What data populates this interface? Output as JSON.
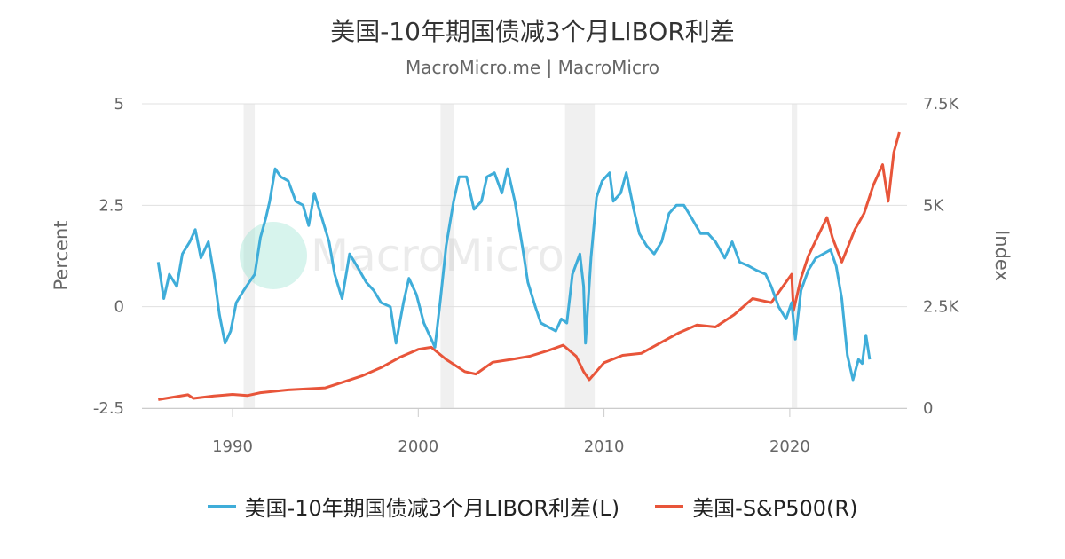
{
  "title": "美国-10年期国债减3个月LIBOR利差",
  "subtitle": "MacroMicro.me | MacroMicro",
  "watermark": "MacroMicro",
  "chart_data": {
    "type": "line",
    "title": "美国-10年期国债减3个月LIBOR利差",
    "xlim": [
      1986,
      2026
    ],
    "x_ticks": [
      "1990",
      "2000",
      "2010",
      "2020"
    ],
    "y_left": {
      "label": "Percent",
      "lim": [
        -2.5,
        5
      ],
      "ticks": [
        "-2.5",
        "0",
        "2.5",
        "5"
      ]
    },
    "y_right": {
      "label": "Index",
      "lim": [
        0,
        7500
      ],
      "ticks": [
        "0",
        "2.5K",
        "5K",
        "7.5K"
      ]
    },
    "grid": true,
    "legend_position": "bottom",
    "recessions": [
      [
        1990.6,
        1991.2
      ],
      [
        2001.2,
        2001.9
      ],
      [
        2007.9,
        2009.5
      ],
      [
        2020.1,
        2020.4
      ]
    ],
    "series": [
      {
        "name": "美国-10年期国债减3个月LIBOR利差(L)",
        "axis": "left",
        "color": "#3fadd9",
        "x": [
          1986.0,
          1986.3,
          1986.6,
          1987.0,
          1987.3,
          1987.7,
          1988.0,
          1988.3,
          1988.7,
          1989.0,
          1989.3,
          1989.6,
          1989.9,
          1990.2,
          1990.6,
          1990.9,
          1991.2,
          1991.5,
          1991.8,
          1992.0,
          1992.3,
          1992.6,
          1993.0,
          1993.4,
          1993.8,
          1994.1,
          1994.4,
          1994.8,
          1995.2,
          1995.5,
          1995.9,
          1996.3,
          1996.7,
          1997.2,
          1997.6,
          1998.0,
          1998.5,
          1998.8,
          1999.2,
          1999.5,
          1999.9,
          2000.3,
          2000.7,
          2000.9,
          2001.2,
          2001.5,
          2001.9,
          2002.2,
          2002.6,
          2003.0,
          2003.4,
          2003.7,
          2004.1,
          2004.5,
          2004.8,
          2005.2,
          2005.6,
          2005.9,
          2006.3,
          2006.6,
          2007.0,
          2007.4,
          2007.7,
          2008.0,
          2008.3,
          2008.7,
          2008.9,
          2009.0,
          2009.3,
          2009.6,
          2009.9,
          2010.3,
          2010.5,
          2010.9,
          2011.2,
          2011.6,
          2011.9,
          2012.3,
          2012.7,
          2013.1,
          2013.5,
          2013.9,
          2014.3,
          2014.7,
          2015.2,
          2015.6,
          2016.0,
          2016.5,
          2016.9,
          2017.3,
          2017.8,
          2018.2,
          2018.7,
          2019.0,
          2019.4,
          2019.8,
          2020.1,
          2020.3,
          2020.6,
          2021.0,
          2021.4,
          2021.8,
          2022.2,
          2022.5,
          2022.8,
          2023.1,
          2023.4,
          2023.7,
          2023.9,
          2024.1,
          2024.3
        ],
        "values": [
          1.1,
          0.2,
          0.8,
          0.5,
          1.3,
          1.6,
          1.9,
          1.2,
          1.6,
          0.8,
          -0.2,
          -0.9,
          -0.6,
          0.1,
          0.4,
          0.6,
          0.8,
          1.7,
          2.2,
          2.6,
          3.4,
          3.2,
          3.1,
          2.6,
          2.5,
          2.0,
          2.8,
          2.2,
          1.6,
          0.8,
          0.2,
          1.3,
          1.0,
          0.6,
          0.4,
          0.1,
          0.0,
          -0.9,
          0.1,
          0.7,
          0.3,
          -0.4,
          -0.8,
          -1.0,
          0.2,
          1.5,
          2.6,
          3.2,
          3.2,
          2.4,
          2.6,
          3.2,
          3.3,
          2.8,
          3.4,
          2.6,
          1.5,
          0.6,
          0.0,
          -0.4,
          -0.5,
          -0.6,
          -0.3,
          -0.4,
          0.8,
          1.3,
          0.5,
          -0.9,
          1.2,
          2.7,
          3.1,
          3.3,
          2.6,
          2.8,
          3.3,
          2.4,
          1.8,
          1.5,
          1.3,
          1.6,
          2.3,
          2.5,
          2.5,
          2.2,
          1.8,
          1.8,
          1.6,
          1.2,
          1.6,
          1.1,
          1.0,
          0.9,
          0.8,
          0.5,
          0.0,
          -0.3,
          0.1,
          -0.8,
          0.4,
          0.9,
          1.2,
          1.3,
          1.4,
          1.0,
          0.2,
          -1.2,
          -1.8,
          -1.3,
          -1.4,
          -0.7,
          -1.3
        ]
      },
      {
        "name": "美国-S&P500(R)",
        "axis": "right",
        "color": "#e8553a",
        "x": [
          1986.0,
          1987.6,
          1987.9,
          1989.0,
          1990.0,
          1990.8,
          1991.5,
          1993.0,
          1995.0,
          1996.0,
          1997.0,
          1998.0,
          1999.0,
          2000.0,
          2000.7,
          2001.5,
          2002.5,
          2003.1,
          2004.0,
          2005.0,
          2006.0,
          2007.0,
          2007.8,
          2008.5,
          2008.9,
          2009.2,
          2010.0,
          2011.0,
          2012.0,
          2013.0,
          2014.0,
          2015.0,
          2016.0,
          2017.0,
          2018.0,
          2019.0,
          2020.1,
          2020.2,
          2020.6,
          2021.0,
          2022.0,
          2022.3,
          2022.8,
          2023.5,
          2024.0,
          2024.5,
          2025.0,
          2025.3,
          2025.6,
          2025.9
        ],
        "values": [
          210,
          330,
          240,
          300,
          340,
          310,
          380,
          450,
          500,
          650,
          800,
          1000,
          1250,
          1450,
          1500,
          1200,
          900,
          840,
          1130,
          1200,
          1280,
          1420,
          1550,
          1280,
          900,
          700,
          1120,
          1300,
          1350,
          1600,
          1850,
          2050,
          2000,
          2300,
          2700,
          2600,
          3300,
          2400,
          3200,
          3750,
          4700,
          4200,
          3600,
          4400,
          4800,
          5500,
          6000,
          5100,
          6300,
          6800
        ]
      }
    ]
  }
}
